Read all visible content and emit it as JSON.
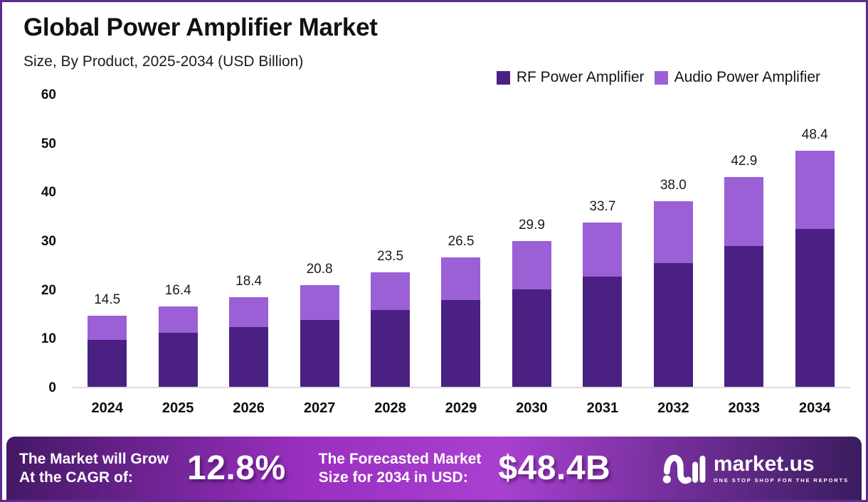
{
  "window": {
    "border_color": "#5c2b94",
    "background": "#ffffff"
  },
  "header": {
    "title": "Global Power Amplifier Market",
    "subtitle": "Size, By Product, 2025-2034 (USD Billion)"
  },
  "legend": {
    "items": [
      {
        "label": "RF Power Amplifier",
        "color": "#4a2182"
      },
      {
        "label": "Audio Power Amplifier",
        "color": "#9b5fd6"
      }
    ]
  },
  "chart_data": {
    "type": "bar",
    "stacked": true,
    "title": "Global Power Amplifier Market",
    "subtitle": "Size, By Product, 2025-2034 (USD Billion)",
    "categories": [
      "2024",
      "2025",
      "2026",
      "2027",
      "2028",
      "2029",
      "2030",
      "2031",
      "2032",
      "2033",
      "2034"
    ],
    "series": [
      {
        "name": "RF Power Amplifier",
        "color": "#4a2182",
        "values": [
          9.6,
          11.0,
          12.3,
          13.7,
          15.7,
          17.7,
          19.9,
          22.6,
          25.4,
          28.9,
          32.4
        ]
      },
      {
        "name": "Audio Power Amplifier",
        "color": "#9b5fd6",
        "values": [
          4.9,
          5.4,
          6.1,
          7.1,
          7.8,
          8.8,
          10.0,
          11.1,
          12.6,
          14.0,
          16.0
        ]
      }
    ],
    "totals": [
      14.5,
      16.4,
      18.4,
      20.8,
      23.5,
      26.5,
      29.9,
      33.7,
      38.0,
      42.9,
      48.4
    ],
    "total_labels": [
      "14.5",
      "16.4",
      "18.4",
      "20.8",
      "23.5",
      "26.5",
      "29.9",
      "33.7",
      "38.0",
      "42.9",
      "48.4"
    ],
    "xlabel": "",
    "ylabel": "",
    "ylim": [
      0,
      60
    ],
    "yticks": [
      0,
      10,
      20,
      30,
      40,
      50,
      60
    ],
    "grid": false,
    "legend_position": "top-right",
    "baseline_color": "#dcdcdc"
  },
  "banner": {
    "cagr_label_line1": "The Market will Grow",
    "cagr_label_line2": "At the CAGR of:",
    "cagr_value": "12.8%",
    "forecast_label_line1": "The Forecasted Market",
    "forecast_label_line2": "Size for 2034 in USD:",
    "forecast_value": "$48.4B",
    "brand_name": "market.us",
    "brand_tagline": "ONE STOP SHOP FOR THE REPORTS",
    "gradient": [
      "#441866",
      "#9a2fc0",
      "#a840d0",
      "#3a1c5e"
    ]
  }
}
